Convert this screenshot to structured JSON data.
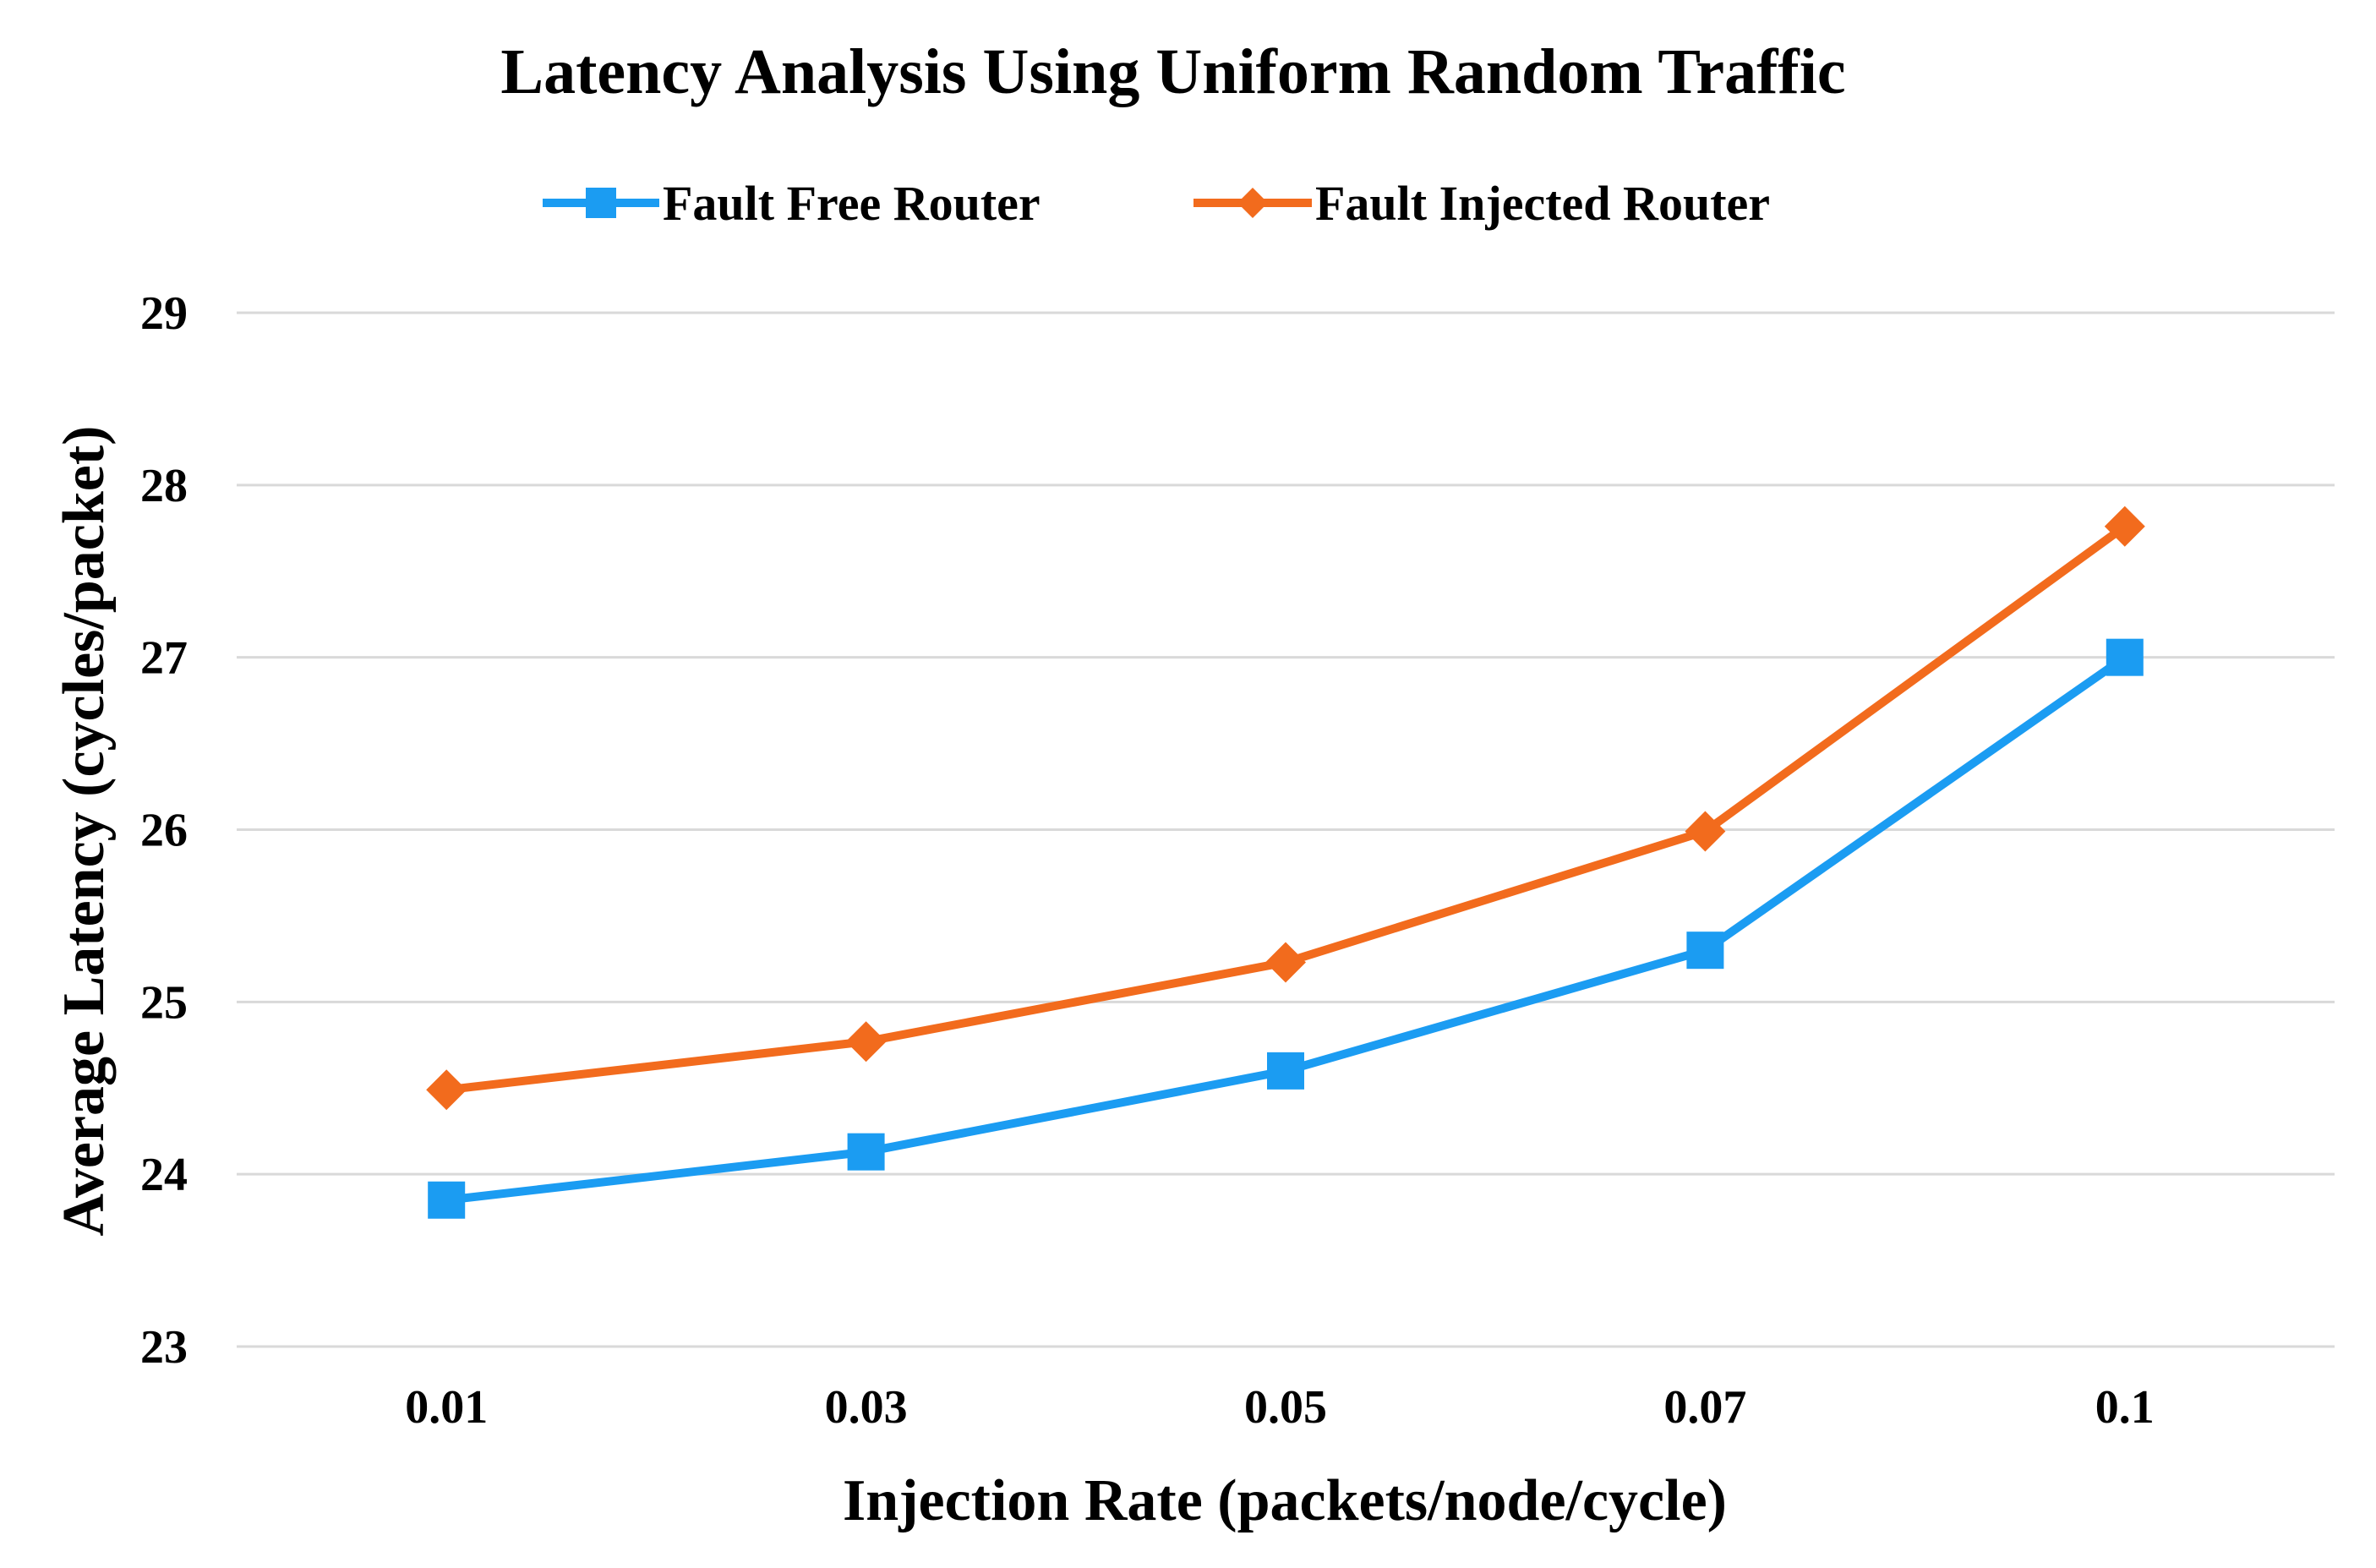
{
  "chart_data": {
    "type": "line",
    "title": "Latency Analysis Using Uniform Random Traffic",
    "xlabel": "Injection Rate (packets/node/cycle)",
    "ylabel": "Average Latency (cycles/packet)",
    "categories": [
      "0.01",
      "0.03",
      "0.05",
      "0.07",
      "0.1"
    ],
    "ylim": [
      23,
      29
    ],
    "yticks": [
      "23",
      "24",
      "25",
      "26",
      "27",
      "28",
      "29"
    ],
    "grid": true,
    "legend_position": "top-center",
    "series": [
      {
        "name": "Fault Free Router",
        "color": "#1b9cf2",
        "marker": "square",
        "values": [
          23.85,
          24.13,
          24.6,
          25.3,
          27.0
        ]
      },
      {
        "name": "Fault Injected Router",
        "color": "#f26b1d",
        "marker": "diamond",
        "values": [
          24.49,
          24.77,
          25.23,
          25.99,
          27.76
        ]
      }
    ]
  }
}
